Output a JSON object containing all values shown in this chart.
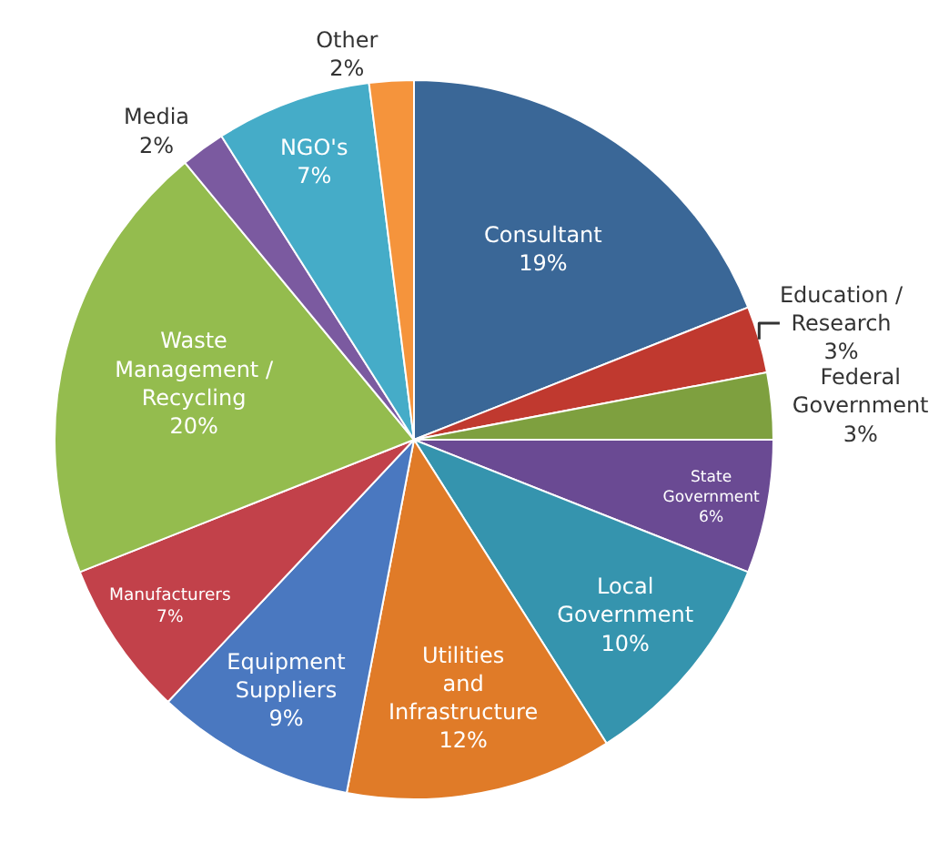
{
  "chart_data": {
    "type": "pie",
    "categories": [
      "Consultant",
      "Education / Research",
      "Federal Government",
      "State Government",
      "Local Government",
      "Utilities and Infrastructure",
      "Equipment Suppliers",
      "Manufacturers",
      "Waste Management / Recycling",
      "Media",
      "NGO's",
      "Other"
    ],
    "values": [
      19,
      3,
      3,
      6,
      10,
      12,
      9,
      7,
      20,
      2,
      7,
      2
    ],
    "value_labels": [
      "19%",
      "3%",
      "3%",
      "6%",
      "10%",
      "12%",
      "9%",
      "7%",
      "20%",
      "2%",
      "7%",
      "2%"
    ],
    "colors": [
      "#3a6797",
      "#c0392f",
      "#7ea03f",
      "#6a4a93",
      "#3594ae",
      "#e07b28",
      "#4a78c0",
      "#c2414a",
      "#94bc4e",
      "#7b5aa0",
      "#45acc8",
      "#f5943c"
    ],
    "legend": false
  }
}
